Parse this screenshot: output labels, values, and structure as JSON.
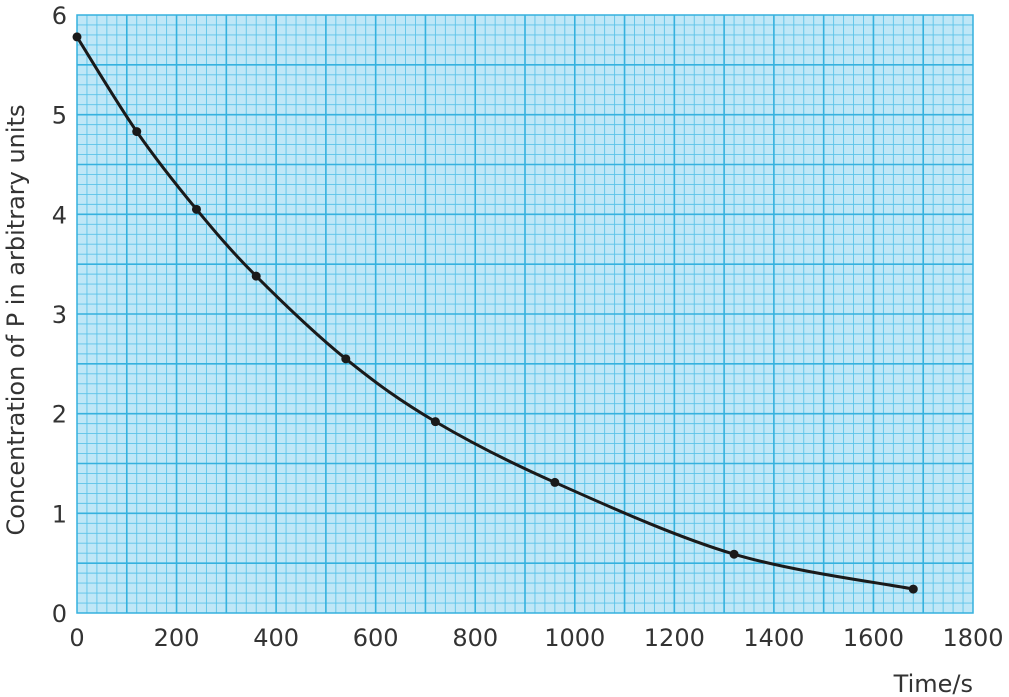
{
  "chart_data": {
    "type": "line",
    "title": "",
    "xlabel": "Time/s",
    "ylabel": "Concentration of P in arbitrary units",
    "xlim": [
      0,
      1800
    ],
    "ylim": [
      0,
      6
    ],
    "xticks": [
      0,
      200,
      400,
      600,
      800,
      1000,
      1200,
      1400,
      1600,
      1800
    ],
    "yticks": [
      0,
      1,
      2,
      3,
      4,
      5,
      6
    ],
    "grid": true,
    "background_color": "#bfe7f7",
    "grid_color": "#5cc3e8",
    "line_color": "#1a1a1a",
    "x": [
      0,
      120,
      240,
      360,
      540,
      720,
      960,
      1320,
      1680
    ],
    "y": [
      5.78,
      4.83,
      4.05,
      3.38,
      2.55,
      1.92,
      1.31,
      0.59,
      0.24
    ]
  }
}
